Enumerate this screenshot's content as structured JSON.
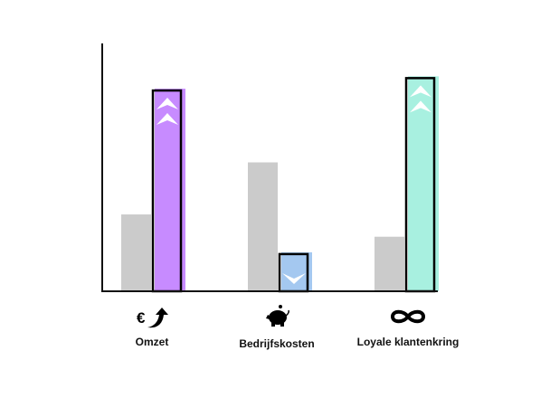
{
  "chart_data": {
    "type": "bar",
    "title": "",
    "xlabel": "",
    "ylabel": "",
    "ylim": [
      0,
      100
    ],
    "grid": false,
    "categories": [
      "Omzet",
      "Bedrijfskosten",
      "Loyale klantenkring"
    ],
    "category_icons": [
      "euro-up-arrow-icon",
      "piggy-bank-icon",
      "infinity-icon"
    ],
    "series": [
      {
        "values": [
          31,
          52,
          22
        ],
        "color": "#cbcbcb"
      },
      {
        "values": [
          81,
          15,
          86
        ],
        "colors": [
          "#c78bff",
          "#a4c8f0",
          "#a8f0e0"
        ],
        "markers": [
          "double-chevron-up-icon",
          "chevron-down-icon",
          "double-chevron-up-icon"
        ]
      }
    ]
  }
}
